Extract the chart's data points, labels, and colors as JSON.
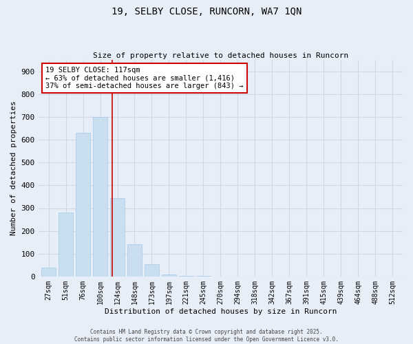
{
  "title_line1": "19, SELBY CLOSE, RUNCORN, WA7 1QN",
  "title_line2": "Size of property relative to detached houses in Runcorn",
  "xlabel": "Distribution of detached houses by size in Runcorn",
  "ylabel": "Number of detached properties",
  "categories": [
    "27sqm",
    "51sqm",
    "76sqm",
    "100sqm",
    "124sqm",
    "148sqm",
    "173sqm",
    "197sqm",
    "221sqm",
    "245sqm",
    "270sqm",
    "294sqm",
    "318sqm",
    "342sqm",
    "367sqm",
    "391sqm",
    "415sqm",
    "439sqm",
    "464sqm",
    "488sqm",
    "512sqm"
  ],
  "values": [
    40,
    280,
    630,
    700,
    345,
    140,
    55,
    8,
    3,
    2,
    1,
    0,
    0,
    0,
    0,
    0,
    0,
    0,
    0,
    0,
    0
  ],
  "bar_color": "#c9dff0",
  "bar_edgecolor": "#a8c8e8",
  "marker_label_line1": "19 SELBY CLOSE: 117sqm",
  "marker_label_line2": "← 63% of detached houses are smaller (1,416)",
  "marker_label_line3": "37% of semi-detached houses are larger (843) →",
  "annotation_box_color": "#ffffff",
  "annotation_box_edgecolor": "#cc0000",
  "vline_color": "#cc0000",
  "ylim": [
    0,
    950
  ],
  "yticks": [
    0,
    100,
    200,
    300,
    400,
    500,
    600,
    700,
    800,
    900
  ],
  "grid_color": "#d0d8e8",
  "bg_color": "#e8eef8",
  "footer_line1": "Contains HM Land Registry data © Crown copyright and database right 2025.",
  "footer_line2": "Contains public sector information licensed under the Open Government Licence v3.0."
}
